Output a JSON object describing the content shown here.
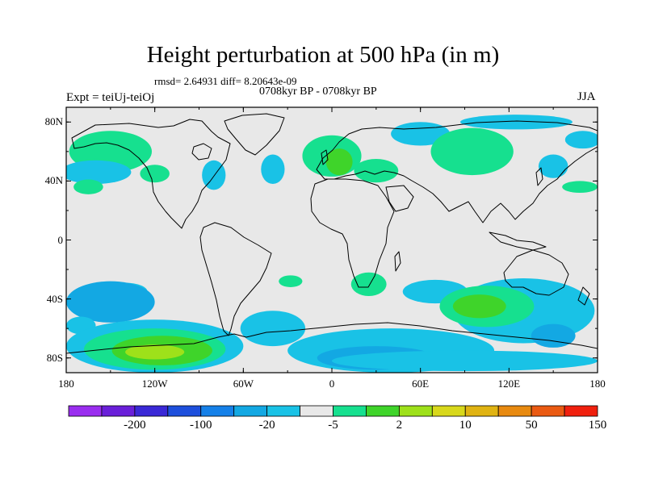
{
  "title": "Height perturbation at 500 hPa (in m)",
  "stats": "rmsd= 2.64931  diff= 8.20643e-09",
  "subtitle": "0708kyr BP - 0708kyr BP",
  "left_label": "Expt = teiUj-teiOj",
  "right_label": "JJA",
  "map": {
    "projection": "cylindrical-equidistant",
    "lon_range": [
      -180,
      180
    ],
    "lat_range": [
      -90,
      90
    ],
    "y_ticks": [
      {
        "lat": 80,
        "label": "80N"
      },
      {
        "lat": 40,
        "label": "40N"
      },
      {
        "lat": 0,
        "label": "0"
      },
      {
        "lat": -40,
        "label": "40S"
      },
      {
        "lat": -80,
        "label": "80S"
      }
    ],
    "x_ticks": [
      {
        "lon": -180,
        "label": "180"
      },
      {
        "lon": -120,
        "label": "120W"
      },
      {
        "lon": -60,
        "label": "60W"
      },
      {
        "lon": 0,
        "label": "0"
      },
      {
        "lon": 60,
        "label": "60E"
      },
      {
        "lon": 120,
        "label": "120E"
      },
      {
        "lon": 180,
        "label": "180"
      }
    ],
    "background_color": "#e8e8e8"
  },
  "colorbar": {
    "colors": [
      "#9a2eef",
      "#6a1fd9",
      "#3a28d6",
      "#1d4fdc",
      "#1580e8",
      "#13a8e3",
      "#19c2e6",
      "#e8e8e8",
      "#16e08f",
      "#3fd42a",
      "#9ee11a",
      "#d8d81b",
      "#e0b312",
      "#e88a10",
      "#ea5a12",
      "#f0200e"
    ],
    "labels": [
      {
        "after": 1,
        "label": "-200"
      },
      {
        "after": 3,
        "label": "-100"
      },
      {
        "after": 5,
        "label": "-20"
      },
      {
        "after": 7,
        "label": "-5"
      },
      {
        "after": 9,
        "label": "2"
      },
      {
        "after": 11,
        "label": "10"
      },
      {
        "after": 13,
        "label": "50"
      },
      {
        "after": 15,
        "label": "150"
      }
    ]
  },
  "anomalies": [
    {
      "lon": -150,
      "lat": 60,
      "rx": 28,
      "ry": 14,
      "level": 8
    },
    {
      "lon": -160,
      "lat": 46,
      "rx": 24,
      "ry": 8,
      "level": 6
    },
    {
      "lon": -165,
      "lat": 36,
      "rx": 10,
      "ry": 5,
      "level": 8
    },
    {
      "lon": -120,
      "lat": 45,
      "rx": 10,
      "ry": 6,
      "level": 8
    },
    {
      "lon": -80,
      "lat": 44,
      "rx": 8,
      "ry": 10,
      "level": 6
    },
    {
      "lon": -40,
      "lat": 48,
      "rx": 8,
      "ry": 10,
      "level": 6
    },
    {
      "lon": 0,
      "lat": 57,
      "rx": 20,
      "ry": 14,
      "level": 8
    },
    {
      "lon": 5,
      "lat": 53,
      "rx": 9,
      "ry": 9,
      "level": 9
    },
    {
      "lon": 30,
      "lat": 47,
      "rx": 15,
      "ry": 8,
      "level": 8
    },
    {
      "lon": 60,
      "lat": 72,
      "rx": 20,
      "ry": 8,
      "level": 6
    },
    {
      "lon": 95,
      "lat": 60,
      "rx": 28,
      "ry": 16,
      "level": 8
    },
    {
      "lon": 125,
      "lat": 80,
      "rx": 38,
      "ry": 5,
      "level": 6
    },
    {
      "lon": 150,
      "lat": 50,
      "rx": 10,
      "ry": 8,
      "level": 6
    },
    {
      "lon": 170,
      "lat": 68,
      "rx": 12,
      "ry": 6,
      "level": 6
    },
    {
      "lon": 168,
      "lat": 36,
      "rx": 12,
      "ry": 4,
      "level": 8
    },
    {
      "lon": -140,
      "lat": -35,
      "rx": 15,
      "ry": 6,
      "level": 6
    },
    {
      "lon": -150,
      "lat": -42,
      "rx": 30,
      "ry": 14,
      "level": 5
    },
    {
      "lon": -170,
      "lat": -58,
      "rx": 10,
      "ry": 6,
      "level": 6
    },
    {
      "lon": -40,
      "lat": -60,
      "rx": 22,
      "ry": 12,
      "level": 6
    },
    {
      "lon": -28,
      "lat": -28,
      "rx": 8,
      "ry": 4,
      "level": 8
    },
    {
      "lon": 25,
      "lat": -30,
      "rx": 12,
      "ry": 8,
      "level": 8
    },
    {
      "lon": 70,
      "lat": -35,
      "rx": 22,
      "ry": 8,
      "level": 6
    },
    {
      "lon": 130,
      "lat": -48,
      "rx": 48,
      "ry": 22,
      "level": 6
    },
    {
      "lon": 105,
      "lat": -45,
      "rx": 32,
      "ry": 14,
      "level": 8
    },
    {
      "lon": 100,
      "lat": -45,
      "rx": 18,
      "ry": 8,
      "level": 9
    },
    {
      "lon": 40,
      "lat": -75,
      "rx": 70,
      "ry": 15,
      "level": 6
    },
    {
      "lon": 30,
      "lat": -80,
      "rx": 40,
      "ry": 8,
      "level": 5
    },
    {
      "lon": 150,
      "lat": -65,
      "rx": 15,
      "ry": 8,
      "level": 5
    },
    {
      "lon": 90,
      "lat": -82,
      "rx": 90,
      "ry": 7,
      "level": 6
    },
    {
      "lon": -120,
      "lat": -72,
      "rx": 60,
      "ry": 18,
      "level": 6
    },
    {
      "lon": -120,
      "lat": -74,
      "rx": 48,
      "ry": 14,
      "level": 8
    },
    {
      "lon": -115,
      "lat": -75,
      "rx": 34,
      "ry": 10,
      "level": 9
    },
    {
      "lon": -120,
      "lat": -76,
      "rx": 20,
      "ry": 5,
      "level": 10
    }
  ]
}
